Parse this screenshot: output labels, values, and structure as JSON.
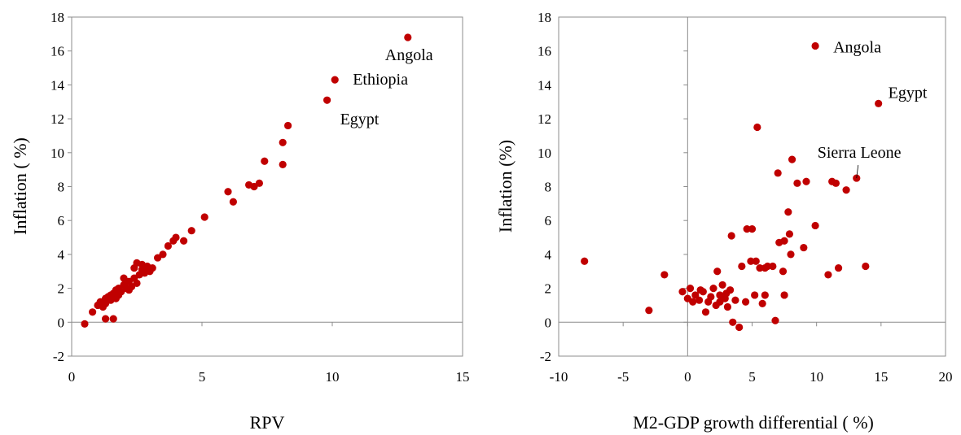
{
  "chart_data": [
    {
      "type": "scatter",
      "xlabel": "RPV",
      "ylabel": "Inflation ( %)",
      "xlim": [
        0,
        15
      ],
      "ylim": [
        -2,
        18
      ],
      "xticks": [
        0,
        5,
        10,
        15
      ],
      "yticks": [
        -2,
        0,
        2,
        4,
        6,
        8,
        10,
        12,
        14,
        16,
        18
      ],
      "grid": false,
      "marker_color": "#c00000",
      "series": [
        {
          "points": [
            [
              0.5,
              -0.1
            ],
            [
              0.8,
              0.6
            ],
            [
              1.0,
              1.0
            ],
            [
              1.1,
              1.2
            ],
            [
              1.2,
              0.9
            ],
            [
              1.3,
              1.4
            ],
            [
              1.3,
              1.1
            ],
            [
              1.4,
              1.5
            ],
            [
              1.5,
              1.3
            ],
            [
              1.6,
              1.7
            ],
            [
              1.7,
              1.9
            ],
            [
              1.8,
              1.6
            ],
            [
              1.8,
              2.0
            ],
            [
              1.9,
              1.8
            ],
            [
              2.0,
              2.2
            ],
            [
              2.1,
              2.0
            ],
            [
              2.2,
              2.4
            ],
            [
              2.3,
              2.1
            ],
            [
              2.4,
              2.6
            ],
            [
              2.5,
              2.3
            ],
            [
              2.5,
              3.5
            ],
            [
              2.6,
              2.8
            ],
            [
              2.7,
              3.1
            ],
            [
              2.8,
              2.9
            ],
            [
              2.9,
              3.3
            ],
            [
              3.0,
              3.0
            ],
            [
              3.1,
              3.2
            ],
            [
              3.3,
              3.8
            ],
            [
              3.5,
              4.0
            ],
            [
              3.7,
              4.5
            ],
            [
              3.9,
              4.8
            ],
            [
              4.0,
              5.0
            ],
            [
              4.3,
              4.8
            ],
            [
              4.6,
              5.4
            ],
            [
              5.1,
              6.2
            ],
            [
              6.0,
              7.7
            ],
            [
              6.2,
              7.1
            ],
            [
              6.8,
              8.1
            ],
            [
              7.0,
              8.0
            ],
            [
              7.2,
              8.2
            ],
            [
              7.4,
              9.5
            ],
            [
              8.1,
              9.3
            ],
            [
              8.1,
              10.6
            ],
            [
              8.3,
              11.6
            ],
            [
              9.8,
              13.1
            ],
            [
              10.1,
              14.3
            ],
            [
              12.9,
              16.8
            ],
            [
              1.3,
              0.2
            ],
            [
              1.6,
              0.2
            ],
            [
              1.7,
              1.4
            ],
            [
              2.0,
              2.6
            ],
            [
              2.2,
              1.9
            ],
            [
              2.4,
              3.2
            ],
            [
              2.7,
              3.4
            ],
            [
              2.9,
              3.1
            ],
            [
              1.5,
              1.6
            ]
          ]
        }
      ],
      "annotations": [
        {
          "text": "Angola",
          "x": 12.9,
          "y": 16.8
        },
        {
          "text": "Ethiopia",
          "x": 10.1,
          "y": 14.3
        },
        {
          "text": "Egypt",
          "x": 9.8,
          "y": 13.1
        }
      ]
    },
    {
      "type": "scatter",
      "xlabel": "M2-GDP growth differential ( %)",
      "ylabel": "Inflation (%)",
      "xlim": [
        -10,
        20
      ],
      "ylim": [
        -2,
        18
      ],
      "xticks": [
        -10,
        -5,
        0,
        5,
        10,
        15,
        20
      ],
      "yticks": [
        -2,
        0,
        2,
        4,
        6,
        8,
        10,
        12,
        14,
        16,
        18
      ],
      "grid": false,
      "marker_color": "#c00000",
      "series": [
        {
          "points": [
            [
              -8.0,
              3.6
            ],
            [
              -3.0,
              0.7
            ],
            [
              -1.8,
              2.8
            ],
            [
              -0.4,
              1.8
            ],
            [
              0.0,
              1.4
            ],
            [
              0.2,
              2.0
            ],
            [
              0.4,
              1.2
            ],
            [
              0.6,
              1.6
            ],
            [
              0.9,
              1.3
            ],
            [
              1.2,
              1.8
            ],
            [
              1.4,
              0.6
            ],
            [
              1.6,
              1.2
            ],
            [
              1.8,
              1.5
            ],
            [
              2.0,
              2.0
            ],
            [
              2.2,
              1.0
            ],
            [
              2.3,
              3.0
            ],
            [
              2.5,
              1.6
            ],
            [
              2.7,
              2.2
            ],
            [
              2.9,
              1.4
            ],
            [
              3.1,
              0.9
            ],
            [
              3.3,
              1.9
            ],
            [
              3.4,
              5.1
            ],
            [
              3.5,
              0.0
            ],
            [
              3.7,
              1.3
            ],
            [
              4.0,
              -0.3
            ],
            [
              4.2,
              3.3
            ],
            [
              4.5,
              1.2
            ],
            [
              4.6,
              5.5
            ],
            [
              4.9,
              3.6
            ],
            [
              5.0,
              5.5
            ],
            [
              5.2,
              1.6
            ],
            [
              5.3,
              3.6
            ],
            [
              5.4,
              11.5
            ],
            [
              5.6,
              3.2
            ],
            [
              5.8,
              1.1
            ],
            [
              6.0,
              1.6
            ],
            [
              6.2,
              3.3
            ],
            [
              6.6,
              3.3
            ],
            [
              6.8,
              0.1
            ],
            [
              7.0,
              8.8
            ],
            [
              7.1,
              4.7
            ],
            [
              7.4,
              3.0
            ],
            [
              7.5,
              4.8
            ],
            [
              7.5,
              1.6
            ],
            [
              7.8,
              6.5
            ],
            [
              7.9,
              5.2
            ],
            [
              8.0,
              4.0
            ],
            [
              8.1,
              9.6
            ],
            [
              8.5,
              8.2
            ],
            [
              9.0,
              4.4
            ],
            [
              9.2,
              8.3
            ],
            [
              9.9,
              5.7
            ],
            [
              10.9,
              2.8
            ],
            [
              11.2,
              8.3
            ],
            [
              11.5,
              8.2
            ],
            [
              11.7,
              3.2
            ],
            [
              12.3,
              7.8
            ],
            [
              13.1,
              8.5
            ],
            [
              13.8,
              3.3
            ],
            [
              9.9,
              16.3
            ],
            [
              14.8,
              12.9
            ],
            [
              2.5,
              1.2
            ],
            [
              3.0,
              1.7
            ],
            [
              1.0,
              1.9
            ],
            [
              6.0,
              3.2
            ]
          ]
        }
      ],
      "annotations": [
        {
          "text": "Angola",
          "x": 9.9,
          "y": 16.3
        },
        {
          "text": "Egypt",
          "x": 14.8,
          "y": 12.9
        },
        {
          "text": "Sierra Leone",
          "x": 13.1,
          "y": 8.5
        }
      ]
    }
  ]
}
